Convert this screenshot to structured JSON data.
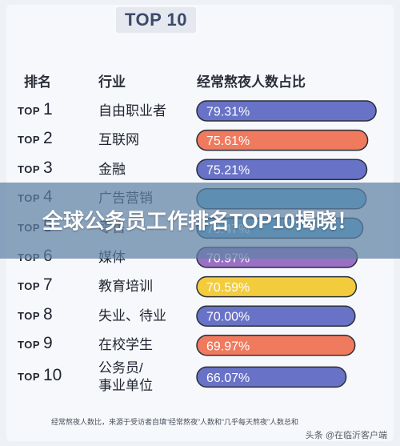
{
  "title": "TOP 10",
  "headers": {
    "rank": "排名",
    "industry": "行业",
    "ratio": "经常熬夜人数占比"
  },
  "rank_prefix": "TOP",
  "banner": "全球公务员工作排名TOP10揭晓！",
  "footnote": "经常熬夜人数比，来源于受访者自填“经常熬夜”人数和“几乎每天熬夜”人数总和",
  "watermark": "头条 @在临沂客户端",
  "chart_data": {
    "type": "bar",
    "orientation": "horizontal",
    "title": "TOP 10",
    "ylabel": "经常熬夜人数占比",
    "unit": "%",
    "xlim": [
      0,
      80
    ],
    "items": [
      {
        "rank": "1",
        "industry": [
          "自由职业者"
        ],
        "value": 79.31,
        "label": "79.31%",
        "color": "#6872c6"
      },
      {
        "rank": "2",
        "industry": [
          "互联网"
        ],
        "value": 75.61,
        "label": "75.61%",
        "color": "#ef7a5e"
      },
      {
        "rank": "3",
        "industry": [
          "金融"
        ],
        "value": 75.21,
        "label": "75.21%",
        "color": "#6872c6"
      },
      {
        "rank": "4",
        "industry": [
          "广告营销"
        ],
        "value": 74.9,
        "label": "",
        "color": "#5aaed3"
      },
      {
        "rank": "5",
        "industry": [
          "零售"
        ],
        "value": 73.47,
        "label": "73.47%",
        "color": "#5aaed3"
      },
      {
        "rank": "6",
        "industry": [
          "媒体"
        ],
        "value": 70.97,
        "label": "70.97%",
        "color": "#9a70c4"
      },
      {
        "rank": "7",
        "industry": [
          "教育培训"
        ],
        "value": 70.59,
        "label": "70.59%",
        "color": "#f2cc3d"
      },
      {
        "rank": "8",
        "industry": [
          "失业、待业"
        ],
        "value": 70.0,
        "label": "70.00%",
        "color": "#6872c6"
      },
      {
        "rank": "9",
        "industry": [
          "在校学生"
        ],
        "value": 69.97,
        "label": "69.97%",
        "color": "#ef7a5e"
      },
      {
        "rank": "10",
        "industry": [
          "公务员/",
          "事业单位"
        ],
        "value": 66.07,
        "label": "66.07%",
        "color": "#6872c6"
      }
    ]
  }
}
